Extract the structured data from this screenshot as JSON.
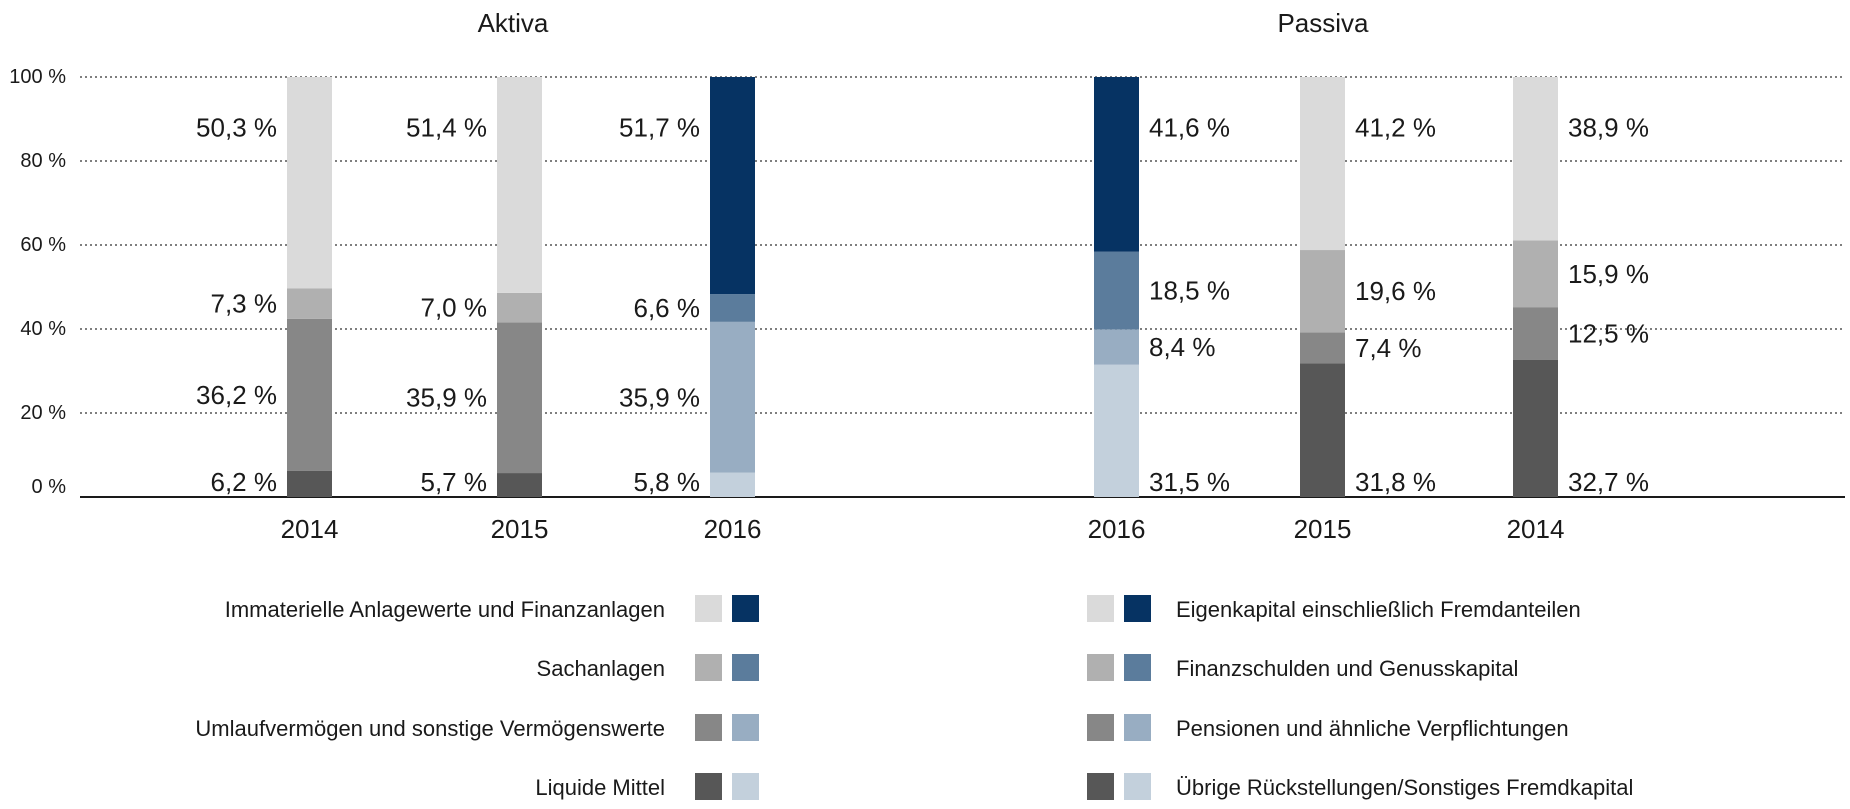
{
  "chart_data": [
    {
      "type": "bar",
      "stacked": true,
      "title": "Aktiva",
      "categories": [
        "2014",
        "2015",
        "2016"
      ],
      "ylim": [
        0,
        100
      ],
      "yticks": [
        "0 %",
        "20 %",
        "40 %",
        "60 %",
        "80 %",
        "100 %"
      ],
      "grid": true,
      "highlight_category": "2016",
      "series": [
        {
          "name": "Liquide Mittel",
          "values": [
            6.2,
            5.7,
            5.8
          ],
          "labels": [
            "6,2 %",
            "5,7 %",
            "5,8 %"
          ],
          "color": "#575757",
          "highlight_color": "#c3d0dc"
        },
        {
          "name": "Umlaufvermögen und sonstige Vermögenswerte",
          "values": [
            36.2,
            35.9,
            35.9
          ],
          "labels": [
            "36,2 %",
            "35,9 %",
            "35,9 %"
          ],
          "color": "#878787",
          "highlight_color": "#98adc2"
        },
        {
          "name": "Sachanlagen",
          "values": [
            7.3,
            7.0,
            6.6
          ],
          "labels": [
            "7,3 %",
            "7,0 %",
            "6,6 %"
          ],
          "color": "#b0b0b0",
          "highlight_color": "#5b7c9c"
        },
        {
          "name": "Immaterielle Anlagewerte und Finanzanlagen",
          "values": [
            50.3,
            51.4,
            51.7
          ],
          "labels": [
            "50,3 %",
            "51,4 %",
            "51,7 %"
          ],
          "color": "#dadada",
          "highlight_color": "#063363"
        }
      ]
    },
    {
      "type": "bar",
      "stacked": true,
      "title": "Passiva",
      "categories": [
        "2016",
        "2015",
        "2014"
      ],
      "ylim": [
        0,
        100
      ],
      "grid": true,
      "highlight_category": "2016",
      "series": [
        {
          "name": "Übrige Rückstellungen/Sonstiges Fremdkapital",
          "values": [
            31.5,
            31.8,
            32.7
          ],
          "labels": [
            "31,5 %",
            "31,8 %",
            "32,7 %"
          ],
          "color": "#575757",
          "highlight_color": "#c3d0dc"
        },
        {
          "name": "Pensionen und ähnliche Verpflichtungen",
          "values": [
            8.4,
            7.4,
            12.5
          ],
          "labels": [
            "8,4 %",
            "7,4 %",
            "12,5 %"
          ],
          "color": "#878787",
          "highlight_color": "#98adc2"
        },
        {
          "name": "Finanzschulden und Genusskapital",
          "values": [
            18.5,
            19.6,
            15.9
          ],
          "labels": [
            "18,5 %",
            "19,6 %",
            "15,9 %"
          ],
          "color": "#b0b0b0",
          "highlight_color": "#5b7c9c"
        },
        {
          "name": "Eigenkapital einschließlich Fremdanteilen",
          "values": [
            41.6,
            41.2,
            38.9
          ],
          "labels": [
            "41,6 %",
            "41,2 %",
            "38,9 %"
          ],
          "color": "#dadada",
          "highlight_color": "#063363"
        }
      ]
    }
  ],
  "legend": {
    "aktiva": [
      "Immaterielle Anlagewerte und Finanzanlagen",
      "Sachanlagen",
      "Umlaufvermögen und sonstige Vermögenswerte",
      "Liquide Mittel"
    ],
    "passiva": [
      "Eigenkapital einschließlich Fremdanteilen",
      "Finanzschulden und Genusskapital",
      "Pensionen und ähnliche Verpflichtungen",
      "Übrige Rückstellungen/Sonstiges Fremdkapital"
    ],
    "grey_swatches": [
      "#dadada",
      "#b0b0b0",
      "#878787",
      "#575757"
    ],
    "blue_swatches": [
      "#063363",
      "#5b7c9c",
      "#98adc2",
      "#c3d0dc"
    ]
  }
}
